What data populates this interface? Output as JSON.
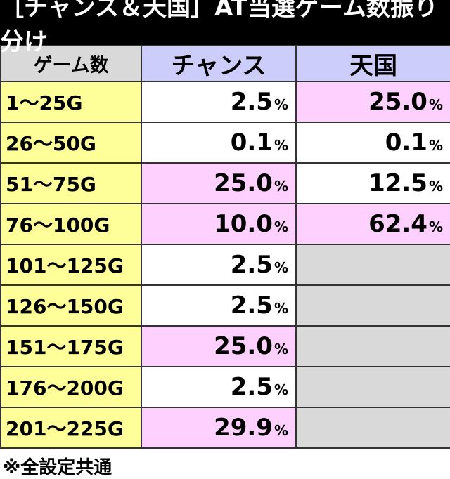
{
  "title": "［チャンス＆天国］AT当選ゲーム数振り分け",
  "headers": [
    "ゲーム数",
    "チャンス",
    "天国"
  ],
  "percent_sign": "%",
  "rows": [
    {
      "games": "1～25G",
      "chance": "2.5",
      "chance_bg": "white",
      "tengoku": "25.0",
      "tengoku_bg": "pink"
    },
    {
      "games": "26～50G",
      "chance": "0.1",
      "chance_bg": "white",
      "tengoku": "0.1",
      "tengoku_bg": "white"
    },
    {
      "games": "51～75G",
      "chance": "25.0",
      "chance_bg": "pink",
      "tengoku": "12.5",
      "tengoku_bg": "white"
    },
    {
      "games": "76～100G",
      "chance": "10.0",
      "chance_bg": "pink",
      "tengoku": "62.4",
      "tengoku_bg": "pink"
    },
    {
      "games": "101～125G",
      "chance": "2.5",
      "chance_bg": "white",
      "tengoku": null,
      "tengoku_bg": "grey"
    },
    {
      "games": "126～150G",
      "chance": "2.5",
      "chance_bg": "white",
      "tengoku": null,
      "tengoku_bg": "grey"
    },
    {
      "games": "151～175G",
      "chance": "25.0",
      "chance_bg": "pink",
      "tengoku": null,
      "tengoku_bg": "grey"
    },
    {
      "games": "176～200G",
      "chance": "2.5",
      "chance_bg": "white",
      "tengoku": null,
      "tengoku_bg": "grey"
    },
    {
      "games": "201～225G",
      "chance": "29.9",
      "chance_bg": "pink",
      "tengoku": null,
      "tengoku_bg": "grey"
    }
  ],
  "note": "※全設定共通",
  "colors": {
    "header_games": "#d9d9d9",
    "header_mode": "#cdcdfc",
    "games_col": "#ffff99",
    "highlight": "#fdd0fd",
    "empty": "#d9d9d9"
  }
}
